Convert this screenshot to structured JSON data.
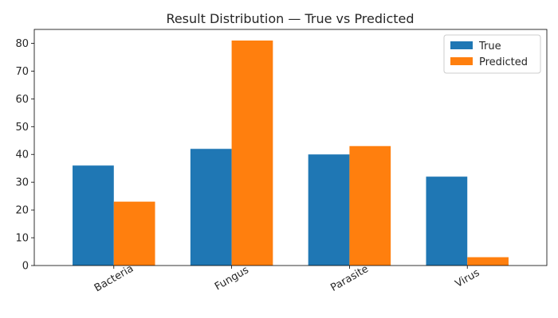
{
  "colors": {
    "true": "#1f77b4",
    "predicted": "#ff7f0e"
  },
  "chart_data": {
    "type": "bar",
    "title": "Result Distribution — True vs Predicted",
    "xlabel": "",
    "ylabel": "",
    "categories": [
      "Bacteria",
      "Fungus",
      "Parasite",
      "Virus"
    ],
    "series": [
      {
        "name": "True",
        "values": [
          36,
          42,
          40,
          32
        ]
      },
      {
        "name": "Predicted",
        "values": [
          23,
          81,
          43,
          3
        ]
      }
    ],
    "ylim": [
      0,
      85
    ],
    "yticks": [
      0,
      10,
      20,
      30,
      40,
      50,
      60,
      70,
      80
    ],
    "grid": false,
    "legend": "top-right",
    "x_tick_rotation": "30"
  }
}
